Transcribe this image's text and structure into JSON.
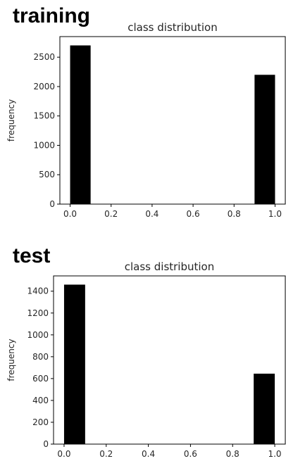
{
  "panels": [
    {
      "heading": "training"
    },
    {
      "heading": "test"
    }
  ],
  "chart_data": [
    {
      "type": "bar",
      "title": "class distribution",
      "xlabel": "",
      "ylabel": "frequency",
      "bins": [
        {
          "x0": 0.0,
          "x1": 0.1,
          "value": 2700
        },
        {
          "x0": 0.9,
          "x1": 1.0,
          "value": 2200
        }
      ],
      "xlim": [
        -0.05,
        1.05
      ],
      "ylim": [
        0,
        2850
      ],
      "xticks": [
        "0.0",
        "0.2",
        "0.4",
        "0.6",
        "0.8",
        "1.0"
      ],
      "yticks": [
        "0",
        "500",
        "1000",
        "1500",
        "2000",
        "2500"
      ],
      "grid": false,
      "bar_color": "#000000"
    },
    {
      "type": "bar",
      "title": "class distribution",
      "xlabel": "",
      "ylabel": "frequency",
      "bins": [
        {
          "x0": 0.0,
          "x1": 0.1,
          "value": 1460
        },
        {
          "x0": 0.9,
          "x1": 1.0,
          "value": 645
        }
      ],
      "xlim": [
        -0.05,
        1.05
      ],
      "ylim": [
        0,
        1540
      ],
      "xticks": [
        "0.0",
        "0.2",
        "0.4",
        "0.6",
        "0.8",
        "1.0"
      ],
      "yticks": [
        "0",
        "200",
        "400",
        "600",
        "800",
        "1000",
        "1200",
        "1400"
      ],
      "grid": false,
      "bar_color": "#000000"
    }
  ]
}
